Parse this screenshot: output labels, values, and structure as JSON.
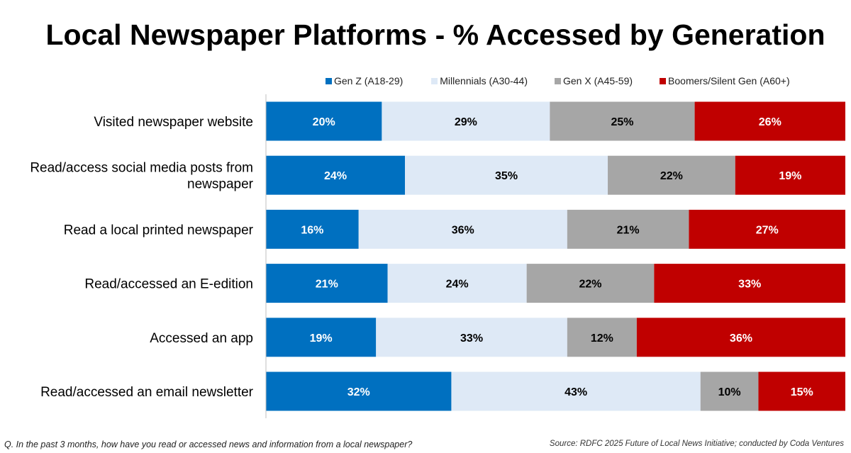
{
  "chart_data": {
    "type": "bar",
    "orientation": "horizontal",
    "stacked": true,
    "title": "Local Newspaper Platforms - % Accessed by Generation",
    "categories": [
      "Visited newspaper website",
      "Read/access social media posts from newspaper",
      "Read a local printed newspaper",
      "Read/accessed an E-edition",
      "Accessed an app",
      "Read/accessed an email newsletter"
    ],
    "series": [
      {
        "name": "Gen Z (A18-29)",
        "color": "#0070C0",
        "label_color": "#FFFFFF",
        "values": [
          20,
          24,
          16,
          21,
          19,
          32
        ]
      },
      {
        "name": "Millennials (A30-44)",
        "color": "#DEE9F6",
        "label_color": "#000000",
        "values": [
          29,
          35,
          36,
          24,
          33,
          43
        ]
      },
      {
        "name": "Gen X (A45-59)",
        "color": "#A6A6A6",
        "label_color": "#000000",
        "values": [
          25,
          22,
          21,
          22,
          12,
          10
        ]
      },
      {
        "name": "Boomers/Silent Gen (A60+)",
        "color": "#C00000",
        "label_color": "#FFFFFF",
        "values": [
          26,
          19,
          27,
          33,
          36,
          15
        ]
      }
    ],
    "value_suffix": "%",
    "xlim": [
      0,
      100
    ],
    "grid": false,
    "legend": "top-right"
  },
  "footer": {
    "question": "Q. In the past 3 months, how have you read or accessed news and information from a local newspaper?",
    "source": "Source: RDFC 2025 Future of Local News Initiative; conducted by Coda Ventures"
  }
}
